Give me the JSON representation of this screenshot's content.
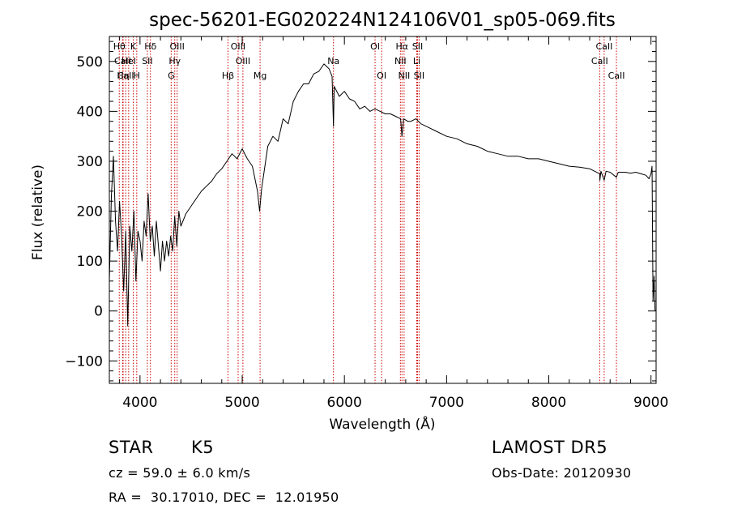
{
  "chart_data": {
    "type": "line",
    "title": "spec-56201-EG020224N124106V01_sp05-069.fits",
    "xlabel": "Wavelength (Å)",
    "ylabel": "Flux (relative)",
    "xlim": [
      3700,
      9050
    ],
    "ylim": [
      -145,
      550
    ],
    "x_ticks": [
      4000,
      5000,
      6000,
      7000,
      8000,
      9000
    ],
    "y_ticks": [
      -100,
      0,
      100,
      200,
      300,
      400,
      500
    ],
    "x_tick_labels": [
      "4000",
      "5000",
      "6000",
      "7000",
      "8000",
      "9000"
    ],
    "y_tick_labels": [
      "−100",
      "0",
      "100",
      "200",
      "300",
      "400",
      "500"
    ],
    "grid": false,
    "series": [
      {
        "color": "#000000",
        "points": [
          [
            3700,
            60
          ],
          [
            3720,
            230
          ],
          [
            3740,
            310
          ],
          [
            3760,
            180
          ],
          [
            3780,
            120
          ],
          [
            3800,
            220
          ],
          [
            3820,
            150
          ],
          [
            3840,
            40
          ],
          [
            3860,
            160
          ],
          [
            3880,
            -30
          ],
          [
            3900,
            170
          ],
          [
            3920,
            120
          ],
          [
            3940,
            200
          ],
          [
            3960,
            60
          ],
          [
            3980,
            160
          ],
          [
            4000,
            140
          ],
          [
            4020,
            100
          ],
          [
            4040,
            180
          ],
          [
            4060,
            150
          ],
          [
            4080,
            235
          ],
          [
            4100,
            140
          ],
          [
            4120,
            170
          ],
          [
            4140,
            110
          ],
          [
            4160,
            180
          ],
          [
            4180,
            130
          ],
          [
            4200,
            80
          ],
          [
            4220,
            140
          ],
          [
            4240,
            100
          ],
          [
            4260,
            140
          ],
          [
            4280,
            110
          ],
          [
            4300,
            150
          ],
          [
            4320,
            120
          ],
          [
            4340,
            190
          ],
          [
            4360,
            130
          ],
          [
            4380,
            200
          ],
          [
            4400,
            170
          ],
          [
            4450,
            195
          ],
          [
            4500,
            210
          ],
          [
            4550,
            225
          ],
          [
            4600,
            240
          ],
          [
            4650,
            250
          ],
          [
            4700,
            260
          ],
          [
            4750,
            275
          ],
          [
            4800,
            285
          ],
          [
            4850,
            300
          ],
          [
            4900,
            315
          ],
          [
            4950,
            305
          ],
          [
            5000,
            325
          ],
          [
            5050,
            305
          ],
          [
            5100,
            290
          ],
          [
            5150,
            240
          ],
          [
            5170,
            200
          ],
          [
            5190,
            245
          ],
          [
            5250,
            330
          ],
          [
            5300,
            350
          ],
          [
            5350,
            340
          ],
          [
            5400,
            385
          ],
          [
            5450,
            375
          ],
          [
            5500,
            420
          ],
          [
            5550,
            440
          ],
          [
            5600,
            455
          ],
          [
            5650,
            455
          ],
          [
            5700,
            475
          ],
          [
            5750,
            480
          ],
          [
            5800,
            495
          ],
          [
            5850,
            485
          ],
          [
            5880,
            470
          ],
          [
            5893,
            370
          ],
          [
            5900,
            450
          ],
          [
            5950,
            430
          ],
          [
            6000,
            440
          ],
          [
            6050,
            425
          ],
          [
            6100,
            420
          ],
          [
            6150,
            405
          ],
          [
            6200,
            410
          ],
          [
            6250,
            400
          ],
          [
            6300,
            405
          ],
          [
            6350,
            400
          ],
          [
            6400,
            395
          ],
          [
            6450,
            395
          ],
          [
            6500,
            390
          ],
          [
            6550,
            385
          ],
          [
            6563,
            350
          ],
          [
            6580,
            385
          ],
          [
            6620,
            380
          ],
          [
            6650,
            380
          ],
          [
            6700,
            385
          ],
          [
            6750,
            375
          ],
          [
            6800,
            370
          ],
          [
            6900,
            360
          ],
          [
            7000,
            350
          ],
          [
            7100,
            345
          ],
          [
            7200,
            335
          ],
          [
            7300,
            330
          ],
          [
            7400,
            320
          ],
          [
            7500,
            315
          ],
          [
            7600,
            310
          ],
          [
            7700,
            310
          ],
          [
            7800,
            305
          ],
          [
            7900,
            305
          ],
          [
            8000,
            300
          ],
          [
            8100,
            295
          ],
          [
            8200,
            290
          ],
          [
            8300,
            288
          ],
          [
            8400,
            285
          ],
          [
            8498,
            275
          ],
          [
            8500,
            262
          ],
          [
            8510,
            280
          ],
          [
            8542,
            262
          ],
          [
            8560,
            280
          ],
          [
            8600,
            278
          ],
          [
            8662,
            268
          ],
          [
            8680,
            278
          ],
          [
            8750,
            278
          ],
          [
            8800,
            276
          ],
          [
            8850,
            278
          ],
          [
            8900,
            275
          ],
          [
            8950,
            272
          ],
          [
            8980,
            265
          ],
          [
            9000,
            275
          ],
          [
            9010,
            290
          ],
          [
            9020,
            20
          ],
          [
            9030,
            70
          ],
          [
            9040,
            0
          ]
        ]
      }
    ],
    "line_annotations": [
      {
        "label": "Hθ",
        "x": 3797,
        "row": 0
      },
      {
        "label": "CaII",
        "x": 3830,
        "row": 1
      },
      {
        "label": "CaII",
        "x": 3860,
        "row": 2
      },
      {
        "label": "K",
        "x": 3934,
        "row": 0
      },
      {
        "label": "HeI",
        "x": 3889,
        "row": 1
      },
      {
        "label": "Hη",
        "x": 3835,
        "row": 2
      },
      {
        "label": "H",
        "x": 3968,
        "row": 2
      },
      {
        "label": "Hδ",
        "x": 4102,
        "row": 0
      },
      {
        "label": "SII",
        "x": 4072,
        "row": 1
      },
      {
        "label": "OIII",
        "x": 4363,
        "row": 0
      },
      {
        "label": "Hγ",
        "x": 4340,
        "row": 1
      },
      {
        "label": "G",
        "x": 4305,
        "row": 2
      },
      {
        "label": "OIII",
        "x": 4960,
        "row": 0
      },
      {
        "label": "OIII",
        "x": 5007,
        "row": 1
      },
      {
        "label": "Hβ",
        "x": 4861,
        "row": 2
      },
      {
        "label": "Mg",
        "x": 5175,
        "row": 2
      },
      {
        "label": "Na",
        "x": 5893,
        "row": 1
      },
      {
        "label": "OI",
        "x": 6300,
        "row": 0
      },
      {
        "label": "OI",
        "x": 6364,
        "row": 2
      },
      {
        "label": "Hα",
        "x": 6563,
        "row": 0
      },
      {
        "label": "SII",
        "x": 6716,
        "row": 0
      },
      {
        "label": "NII",
        "x": 6548,
        "row": 1
      },
      {
        "label": "Li",
        "x": 6708,
        "row": 1
      },
      {
        "label": "NII",
        "x": 6584,
        "row": 2
      },
      {
        "label": "SII",
        "x": 6731,
        "row": 2
      },
      {
        "label": "CaII",
        "x": 8542,
        "row": 0
      },
      {
        "label": "CaII",
        "x": 8498,
        "row": 1
      },
      {
        "label": "CaII",
        "x": 8662,
        "row": 2
      }
    ],
    "line_color": "#cc0000"
  },
  "info": {
    "class_label": "STAR",
    "subclass_label": "K5",
    "survey": "LAMOST DR5",
    "cz": "cz = 59.0 ± 6.0 km/s",
    "obs_date": "Obs-Date: 20120930",
    "radec": "RA =  30.17010, DEC =  12.01950"
  }
}
